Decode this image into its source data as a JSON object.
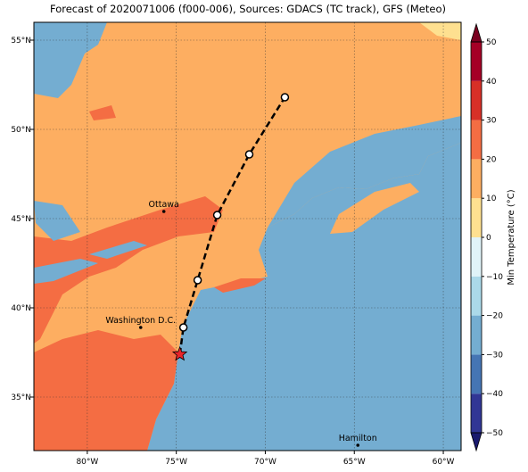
{
  "title": "Forecast of 2020071006 (f000-006), Sources: GDACS (TC track), GFS (Meteo)",
  "map": {
    "xlim": [
      -83,
      -59
    ],
    "ylim": [
      32,
      56
    ],
    "lon_ticks": [
      {
        "value": -80,
        "label": "80°W"
      },
      {
        "value": -75,
        "label": "75°W"
      },
      {
        "value": -70,
        "label": "70°W"
      },
      {
        "value": -65,
        "label": "65°W"
      },
      {
        "value": -60,
        "label": "60°W"
      }
    ],
    "lat_ticks": [
      {
        "value": 35,
        "label": "35°N"
      },
      {
        "value": 40,
        "label": "40°N"
      },
      {
        "value": 45,
        "label": "45°N"
      },
      {
        "value": 50,
        "label": "50°N"
      },
      {
        "value": 55,
        "label": "55°N"
      }
    ],
    "cities": [
      {
        "name": "Ottawa",
        "lon": -75.7,
        "lat": 45.4
      },
      {
        "name": "Washington D.C.",
        "lon": -77.0,
        "lat": 38.9
      },
      {
        "name": "Hamilton",
        "lon": -64.8,
        "lat": 32.3
      }
    ],
    "track": {
      "lon": [
        -74.8,
        -74.6,
        -73.8,
        -72.7,
        -70.9,
        -68.9
      ],
      "lat": [
        37.4,
        38.9,
        41.55,
        45.2,
        48.6,
        51.8
      ]
    }
  },
  "colorbar": {
    "label": "Min Temperature (°C)",
    "lim": [
      -50,
      50
    ],
    "ticks": [
      {
        "value": -50,
        "label": "−50"
      },
      {
        "value": -40,
        "label": "−40"
      },
      {
        "value": -30,
        "label": "−30"
      },
      {
        "value": -20,
        "label": "−20"
      },
      {
        "value": -10,
        "label": "−10"
      },
      0,
      10,
      20,
      30,
      40,
      50
    ],
    "colors": [
      "#313695",
      "#4575b4",
      "#74add1",
      "#abd9e9",
      "#e0f3f8",
      "#fee090",
      "#fdae61",
      "#f46d43",
      "#d73027",
      "#a50026"
    ],
    "under_color": "#1a1a6e",
    "over_color": "#7a0020"
  }
}
